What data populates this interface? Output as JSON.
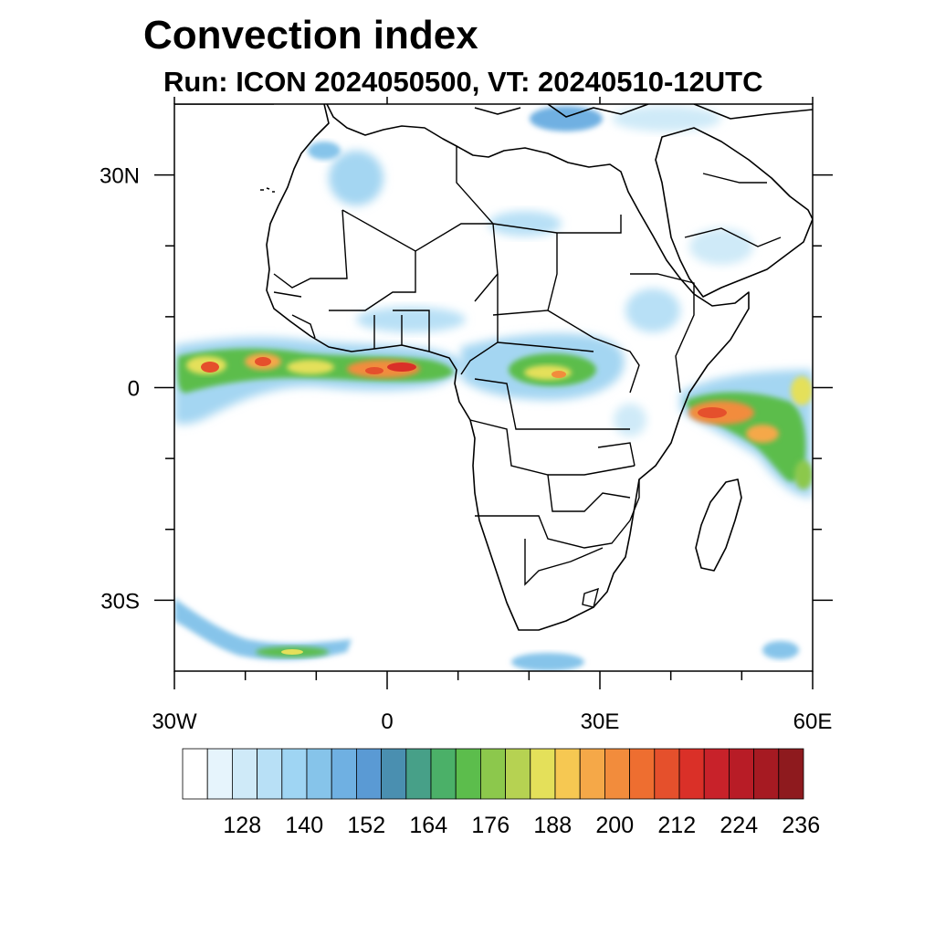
{
  "title": "Convection index",
  "subtitle": "Run: ICON 2024050500,  VT: 20240510-12UTC",
  "map": {
    "lon_range": [
      -30,
      60
    ],
    "lat_range": [
      -40,
      40
    ],
    "x_ticks": [
      {
        "lon": -30,
        "label": "30W"
      },
      {
        "lon": 0,
        "label": "0"
      },
      {
        "lon": 30,
        "label": "30E"
      },
      {
        "lon": 60,
        "label": "60E"
      }
    ],
    "x_minor_ticks": [
      -20,
      -10,
      10,
      20,
      40,
      50
    ],
    "y_ticks": [
      {
        "lat": 30,
        "label": "30N"
      },
      {
        "lat": 0,
        "label": "0"
      },
      {
        "lat": -30,
        "label": "30S"
      }
    ],
    "y_minor_ticks": [
      20,
      10,
      -10,
      -20
    ]
  },
  "colorbar": {
    "colors": [
      "#ffffff",
      "#e6f4fc",
      "#cfeaf8",
      "#b8e0f6",
      "#9fd5f3",
      "#86c4ea",
      "#6fb0e2",
      "#5a9ad4",
      "#4a8fb0",
      "#47a088",
      "#4bb068",
      "#5cbd4c",
      "#8cc84c",
      "#b6d252",
      "#e4e05a",
      "#f6c852",
      "#f5a848",
      "#f28c3c",
      "#ee6e30",
      "#e5502c",
      "#da3028",
      "#c8222a",
      "#b81c26",
      "#a61a22",
      "#8e1a1e"
    ],
    "labels": [
      "128",
      "140",
      "152",
      "164",
      "176",
      "188",
      "200",
      "212",
      "224",
      "236"
    ]
  },
  "convection_regions": [
    {
      "name": "Equatorial Atlantic / Gulf of Guinea band",
      "lon_range": [
        -30,
        8
      ],
      "lat_range": [
        -4,
        3
      ],
      "max_value": 224
    },
    {
      "name": "Congo Basin",
      "lon_range": [
        12,
        30
      ],
      "lat_range": [
        -2,
        4
      ],
      "max_value": 212
    },
    {
      "name": "Western Indian Ocean off Somalia",
      "lon_range": [
        40,
        60
      ],
      "lat_range": [
        -14,
        2
      ],
      "max_value": 224
    },
    {
      "name": "Southern Atlantic frontal band",
      "lon_range": [
        -30,
        -5
      ],
      "lat_range": [
        -38,
        -31
      ],
      "max_value": 176
    },
    {
      "name": "Northwest Africa",
      "lon_range": [
        -10,
        0
      ],
      "lat_range": [
        24,
        33
      ],
      "max_value": 152
    },
    {
      "name": "Eastern Mediterranean",
      "lon_range": [
        18,
        30
      ],
      "lat_range": [
        33,
        40
      ],
      "max_value": 164
    }
  ]
}
